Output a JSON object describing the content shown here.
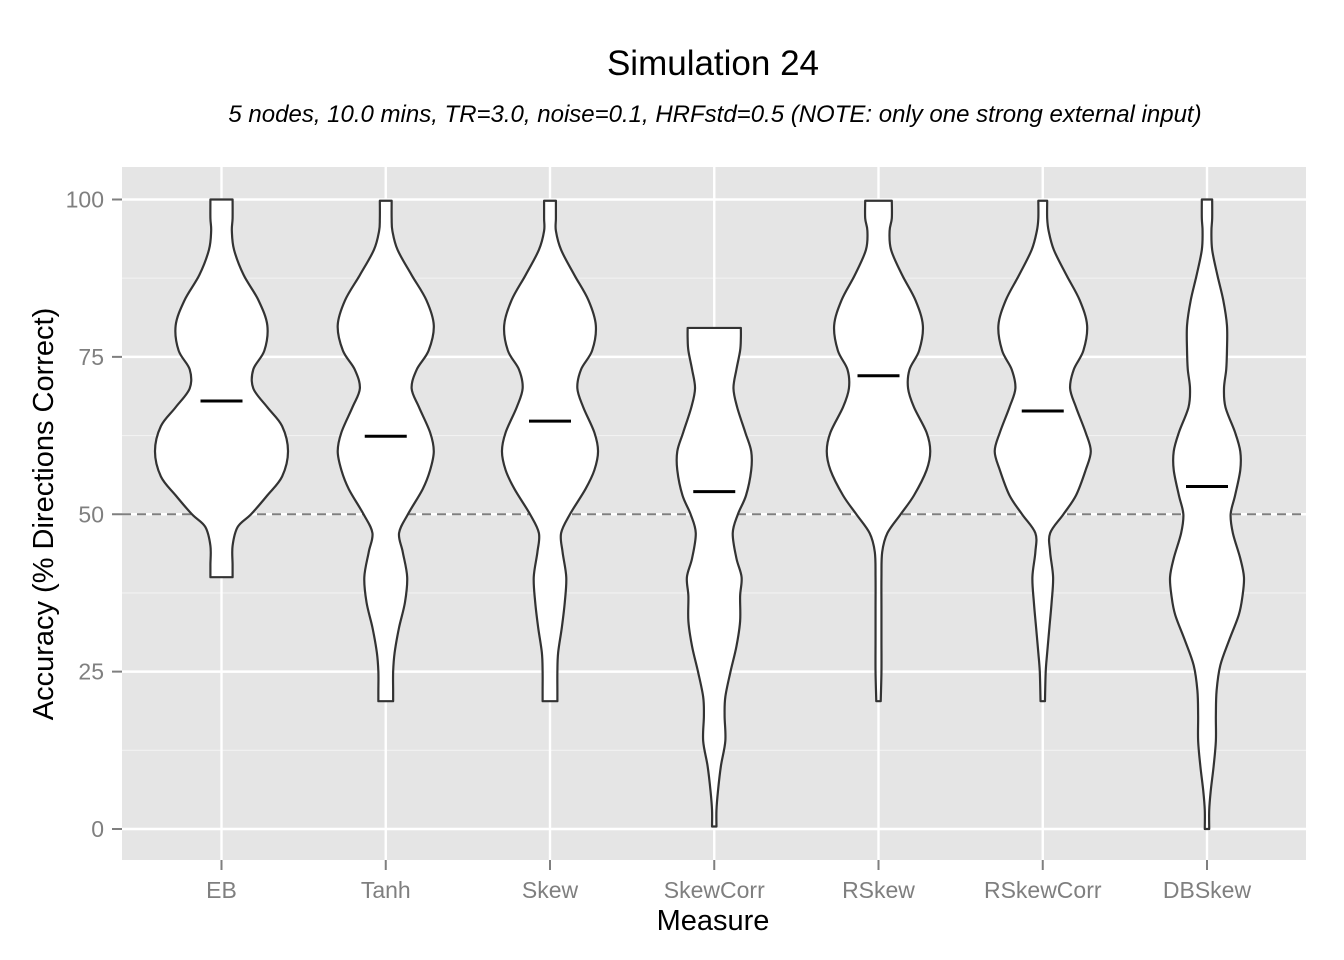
{
  "chart_data": {
    "type": "violin",
    "title": "Simulation 24",
    "subtitle": "5 nodes, 10.0 mins, TR=3.0, noise=0.1, HRFstd=0.5 (NOTE: only one strong external input)",
    "xlabel": "Measure",
    "ylabel": "Accuracy (% Directions Correct)",
    "ylim": [
      -5,
      105
    ],
    "yticks": [
      0,
      25,
      50,
      75,
      100
    ],
    "grid": true,
    "reference_line": 50,
    "categories": [
      "EB",
      "Tanh",
      "Skew",
      "SkewCorr",
      "RSkew",
      "RSkewCorr",
      "DBSkew"
    ],
    "means": [
      68,
      62.4,
      64.8,
      53.6,
      72,
      66.4,
      54.4
    ],
    "violins": [
      {
        "name": "EB",
        "profile": [
          [
            40,
            0.15
          ],
          [
            42,
            0.15
          ],
          [
            45,
            0.15
          ],
          [
            48,
            0.22
          ],
          [
            50,
            0.4
          ],
          [
            53,
            0.62
          ],
          [
            56,
            0.82
          ],
          [
            60,
            0.9
          ],
          [
            64,
            0.82
          ],
          [
            67,
            0.62
          ],
          [
            70,
            0.43
          ],
          [
            73,
            0.43
          ],
          [
            76,
            0.58
          ],
          [
            80,
            0.62
          ],
          [
            84,
            0.5
          ],
          [
            88,
            0.3
          ],
          [
            92,
            0.17
          ],
          [
            95,
            0.14
          ],
          [
            97,
            0.15
          ],
          [
            100,
            0.15
          ]
        ]
      },
      {
        "name": "Tanh",
        "profile": [
          [
            20.3,
            0.1
          ],
          [
            22,
            0.1
          ],
          [
            25,
            0.1
          ],
          [
            28,
            0.12
          ],
          [
            32,
            0.18
          ],
          [
            36,
            0.26
          ],
          [
            40,
            0.29
          ],
          [
            44,
            0.23
          ],
          [
            47,
            0.18
          ],
          [
            50,
            0.3
          ],
          [
            54,
            0.5
          ],
          [
            57,
            0.6
          ],
          [
            60,
            0.65
          ],
          [
            63,
            0.6
          ],
          [
            67,
            0.45
          ],
          [
            70,
            0.35
          ],
          [
            73,
            0.42
          ],
          [
            76,
            0.58
          ],
          [
            80,
            0.65
          ],
          [
            84,
            0.55
          ],
          [
            88,
            0.35
          ],
          [
            92,
            0.16
          ],
          [
            95,
            0.09
          ],
          [
            97,
            0.08
          ],
          [
            99.8,
            0.08
          ]
        ]
      },
      {
        "name": "Skew",
        "profile": [
          [
            20.3,
            0.1
          ],
          [
            22,
            0.1
          ],
          [
            25,
            0.1
          ],
          [
            28,
            0.11
          ],
          [
            32,
            0.16
          ],
          [
            36,
            0.2
          ],
          [
            40,
            0.22
          ],
          [
            44,
            0.17
          ],
          [
            47,
            0.15
          ],
          [
            50,
            0.27
          ],
          [
            54,
            0.48
          ],
          [
            57,
            0.6
          ],
          [
            60,
            0.65
          ],
          [
            63,
            0.6
          ],
          [
            67,
            0.45
          ],
          [
            70,
            0.37
          ],
          [
            73,
            0.42
          ],
          [
            76,
            0.57
          ],
          [
            80,
            0.62
          ],
          [
            84,
            0.52
          ],
          [
            88,
            0.33
          ],
          [
            92,
            0.15
          ],
          [
            95,
            0.08
          ],
          [
            97,
            0.08
          ],
          [
            99.8,
            0.08
          ]
        ]
      },
      {
        "name": "SkewCorr",
        "profile": [
          [
            0.4,
            0.03
          ],
          [
            3,
            0.03
          ],
          [
            6,
            0.05
          ],
          [
            10,
            0.09
          ],
          [
            14,
            0.15
          ],
          [
            18,
            0.14
          ],
          [
            21,
            0.15
          ],
          [
            25,
            0.22
          ],
          [
            29,
            0.3
          ],
          [
            33,
            0.35
          ],
          [
            37,
            0.35
          ],
          [
            40,
            0.37
          ],
          [
            43,
            0.3
          ],
          [
            47,
            0.25
          ],
          [
            50,
            0.32
          ],
          [
            53,
            0.43
          ],
          [
            57,
            0.5
          ],
          [
            60,
            0.5
          ],
          [
            63,
            0.42
          ],
          [
            67,
            0.31
          ],
          [
            70,
            0.26
          ],
          [
            73,
            0.3
          ],
          [
            76,
            0.35
          ],
          [
            78,
            0.36
          ],
          [
            79.6,
            0.36
          ]
        ]
      },
      {
        "name": "RSkew",
        "profile": [
          [
            20.3,
            0.03
          ],
          [
            25,
            0.04
          ],
          [
            30,
            0.04
          ],
          [
            35,
            0.04
          ],
          [
            40,
            0.04
          ],
          [
            44,
            0.05
          ],
          [
            47,
            0.12
          ],
          [
            50,
            0.3
          ],
          [
            53,
            0.48
          ],
          [
            57,
            0.65
          ],
          [
            60,
            0.7
          ],
          [
            63,
            0.65
          ],
          [
            67,
            0.48
          ],
          [
            70,
            0.4
          ],
          [
            73,
            0.42
          ],
          [
            76,
            0.55
          ],
          [
            80,
            0.6
          ],
          [
            84,
            0.5
          ],
          [
            88,
            0.32
          ],
          [
            92,
            0.17
          ],
          [
            95,
            0.15
          ],
          [
            97,
            0.18
          ],
          [
            99.8,
            0.18
          ]
        ]
      },
      {
        "name": "RSkewCorr",
        "profile": [
          [
            20.3,
            0.03
          ],
          [
            25,
            0.04
          ],
          [
            28,
            0.06
          ],
          [
            32,
            0.09
          ],
          [
            36,
            0.12
          ],
          [
            40,
            0.14
          ],
          [
            44,
            0.1
          ],
          [
            47,
            0.1
          ],
          [
            50,
            0.28
          ],
          [
            53,
            0.45
          ],
          [
            57,
            0.58
          ],
          [
            60,
            0.65
          ],
          [
            63,
            0.58
          ],
          [
            67,
            0.45
          ],
          [
            70,
            0.37
          ],
          [
            73,
            0.42
          ],
          [
            76,
            0.55
          ],
          [
            80,
            0.6
          ],
          [
            84,
            0.5
          ],
          [
            88,
            0.32
          ],
          [
            92,
            0.15
          ],
          [
            95,
            0.08
          ],
          [
            97,
            0.06
          ],
          [
            99.8,
            0.06
          ]
        ]
      },
      {
        "name": "DBSkew",
        "profile": [
          [
            0,
            0.03
          ],
          [
            3,
            0.03
          ],
          [
            6,
            0.05
          ],
          [
            10,
            0.09
          ],
          [
            14,
            0.12
          ],
          [
            18,
            0.12
          ],
          [
            22,
            0.13
          ],
          [
            26,
            0.18
          ],
          [
            30,
            0.3
          ],
          [
            34,
            0.43
          ],
          [
            37,
            0.48
          ],
          [
            40,
            0.5
          ],
          [
            43,
            0.45
          ],
          [
            47,
            0.35
          ],
          [
            50,
            0.32
          ],
          [
            53,
            0.38
          ],
          [
            57,
            0.45
          ],
          [
            60,
            0.45
          ],
          [
            63,
            0.38
          ],
          [
            67,
            0.25
          ],
          [
            70,
            0.23
          ],
          [
            73,
            0.26
          ],
          [
            76,
            0.27
          ],
          [
            80,
            0.27
          ],
          [
            84,
            0.22
          ],
          [
            88,
            0.14
          ],
          [
            92,
            0.07
          ],
          [
            95,
            0.06
          ],
          [
            97,
            0.07
          ],
          [
            100,
            0.07
          ]
        ]
      }
    ]
  }
}
